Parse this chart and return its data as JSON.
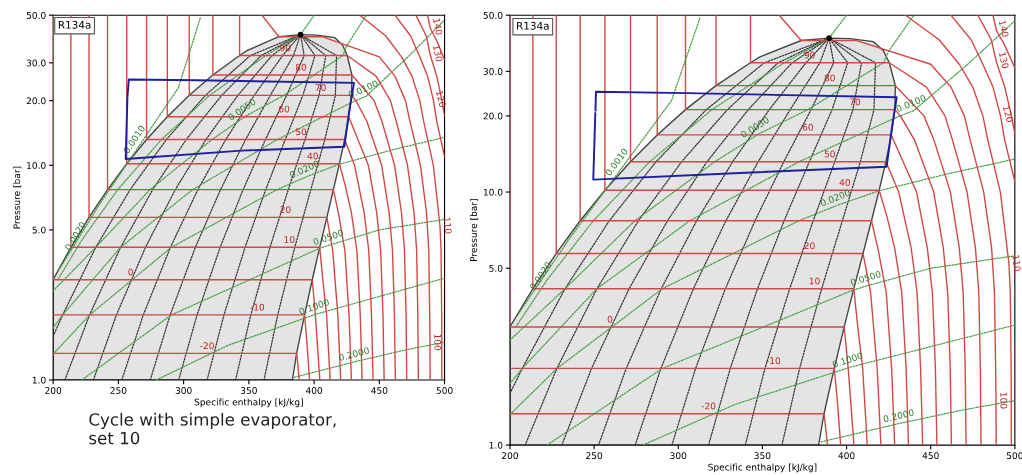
{
  "chart_data": [
    {
      "type": "line",
      "xlabel": "Specific enthalpy [kJ/kg]",
      "ylabel": "Pressure [bar]",
      "log": "y",
      "xlim": [
        200,
        500
      ],
      "ylim": [
        1,
        50
      ],
      "xticks": [
        200,
        250,
        300,
        350,
        400,
        450,
        500
      ],
      "yticks": [
        {
          "value": 1,
          "label": "1.0"
        },
        {
          "value": 5,
          "label": "5.0"
        },
        {
          "value": 10,
          "label": "10.0"
        },
        {
          "value": 20,
          "label": "20.0"
        },
        {
          "value": 30,
          "label": "30.0"
        },
        {
          "value": 50,
          "label": "50.0"
        }
      ],
      "series": [
        {
          "type": "area",
          "color": "#e4e4e4",
          "x": [
            200,
            200,
            213.6,
            227.5,
            241.7,
            256.4,
            271.6,
            287.5,
            304.3,
            322.4,
            342.9,
            348.5,
            373,
            389.6,
            402,
            415.9,
            421.8,
            425.4,
            429,
            428.7,
            426.6,
            423.4,
            419.4,
            414.8,
            409.8,
            404.3,
            398.6,
            392.7,
            386.6,
            383.4
          ],
          "values": [
            1.0,
            2.93,
            4.15,
            5.72,
            7.7,
            10.17,
            13.18,
            16.82,
            21.17,
            26.33,
            32.44,
            34.2,
            39.7,
            40.59,
            40.4,
            39.3,
            36.3,
            32.44,
            26.33,
            21.17,
            16.82,
            13.18,
            10.17,
            7.7,
            5.72,
            4.15,
            2.93,
            2.01,
            1.33,
            1.0
          ]
        },
        {
          "color": "#333333",
          "line_style": "dotted",
          "x": [
            200,
            207.3,
            232.7,
            259.0,
            286.8,
            316.7,
            351.2,
            389.6
          ],
          "values": [
            1.6,
            2.01,
            4.15,
            7.7,
            13.18,
            21.17,
            32.44,
            40.59
          ]
        },
        {
          "color": "#333333",
          "line_style": "dotted",
          "x": [
            209.0,
            227.9,
            251.7,
            276.3,
            302.0,
            329.2,
            359.4,
            389.6
          ],
          "values": [
            1.0,
            2.01,
            4.15,
            7.7,
            13.18,
            21.17,
            32.44,
            40.59
          ]
        },
        {
          "color": "#333333",
          "line_style": "dotted",
          "x": [
            230.8,
            248.5,
            270.8,
            293.6,
            317.1,
            341.6,
            367.7,
            389.6
          ],
          "values": [
            1.0,
            2.01,
            4.15,
            7.7,
            13.18,
            21.17,
            32.44,
            40.59
          ]
        },
        {
          "color": "#333333",
          "line_style": "dotted",
          "x": [
            252.6,
            269.1,
            289.9,
            310.9,
            332.3,
            354.1,
            375.9,
            389.6
          ],
          "values": [
            1.0,
            2.01,
            4.15,
            7.7,
            13.18,
            21.17,
            32.44,
            40.59
          ]
        },
        {
          "color": "#333333",
          "line_style": "dotted",
          "x": [
            274.4,
            289.7,
            309.0,
            328.3,
            347.5,
            366.5,
            384.2,
            389.6
          ],
          "values": [
            1.0,
            2.01,
            4.15,
            7.7,
            13.18,
            21.17,
            32.44,
            40.59
          ]
        },
        {
          "color": "#333333",
          "line_style": "dotted",
          "x": [
            296.2,
            310.3,
            328.0,
            345.6,
            362.7,
            378.9,
            392.4,
            389.6
          ],
          "values": [
            1.0,
            2.01,
            4.15,
            7.7,
            13.18,
            21.17,
            32.44,
            40.59
          ]
        },
        {
          "color": "#333333",
          "line_style": "dotted",
          "x": [
            318.0,
            330.9,
            347.1,
            362.9,
            377.9,
            391.4,
            400.7,
            389.6
          ],
          "values": [
            1.0,
            2.01,
            4.15,
            7.7,
            13.18,
            21.17,
            32.44,
            40.59
          ]
        },
        {
          "color": "#333333",
          "line_style": "dotted",
          "x": [
            339.8,
            351.5,
            366.2,
            380.2,
            393.0,
            403.8,
            408.9,
            389.6
          ],
          "values": [
            1.0,
            2.01,
            4.15,
            7.7,
            13.18,
            21.17,
            32.44,
            40.59
          ]
        },
        {
          "color": "#333333",
          "line_style": "dotted",
          "x": [
            361.6,
            372.1,
            385.2,
            397.5,
            408.2,
            416.3,
            417.2,
            389.6
          ],
          "values": [
            1.0,
            2.01,
            4.15,
            7.7,
            13.18,
            21.17,
            32.44,
            40.59
          ]
        },
        {
          "color": "#4a9e4a",
          "line_style": "dotted",
          "x": [
            205,
            235,
            267,
            296,
            313
          ],
          "values": [
            3.3,
            6.5,
            12.6,
            23,
            49
          ]
        },
        {
          "color": "#4a9e4a",
          "line_style": "dotted",
          "x": [
            203.5,
            222,
            249.5,
            283,
            320,
            363,
            389.6,
            400
          ],
          "values": [
            2.93,
            4.49,
            7.7,
            13.18,
            21.17,
            32.44,
            40.59,
            50
          ]
        },
        {
          "color": "#4a9e4a",
          "line_style": "dotted",
          "x": [
            200,
            232.7,
            274.2,
            321.7,
            348,
            376.9,
            422,
            425,
            440
          ],
          "values": [
            2.6,
            4.15,
            7.7,
            13.18,
            17.0,
            21.17,
            32.44,
            36,
            50
          ]
        },
        {
          "color": "#4a9e4a",
          "line_style": "dotted",
          "x": [
            200,
            207.3,
            251.7,
            306.8,
            371.8,
            428,
            440,
            472,
            500
          ],
          "values": [
            1.75,
            2.01,
            4.15,
            7.7,
            13.18,
            19.5,
            21,
            32,
            47.5
          ]
        },
        {
          "color": "#4a9e4a",
          "line_style": "dotted",
          "x": [
            200,
            228,
            290.6,
            371.6,
            395,
            419,
            460,
            500
          ],
          "values": [
            1.32,
            2.01,
            4.15,
            7.7,
            8.89,
            10.1,
            11.8,
            13.5
          ]
        },
        {
          "color": "#4a9e4a",
          "line_style": "dotted",
          "x": [
            222,
            290.7,
            404,
            412.7,
            450,
            500
          ],
          "values": [
            1.0,
            2.01,
            4.1,
            4.27,
            5.0,
            5.6
          ]
        },
        {
          "color": "#4a9e4a",
          "line_style": "dotted",
          "x": [
            279,
            334,
            402,
            450,
            500
          ],
          "values": [
            1.0,
            1.45,
            2.03,
            2.45,
            2.98
          ]
        },
        {
          "color": "#4a9e4a",
          "line_style": "dotted",
          "x": [
            385,
            432,
            470,
            500
          ],
          "values": [
            1.03,
            1.22,
            1.38,
            1.5
          ]
        },
        {
          "color": "#d04848",
          "x": [
            200,
            386.6,
            388.7
          ],
          "values": [
            1.33,
            1.33,
            1.0
          ]
        },
        {
          "color": "#d04848",
          "x": [
            200,
            392.7,
            394.5,
            396.5
          ],
          "values": [
            2.01,
            2.01,
            1.5,
            1.0
          ]
        },
        {
          "color": "#d04848",
          "x": [
            200,
            200,
            398.6,
            401,
            404.4
          ],
          "values": [
            50,
            2.93,
            2.93,
            2.0,
            1.0
          ]
        },
        {
          "color": "#d04848",
          "x": [
            213.6,
            213.6,
            404.3,
            406.5,
            409.6,
            412.3
          ],
          "values": [
            50,
            4.15,
            4.15,
            3.0,
            2.0,
            1.0
          ]
        },
        {
          "color": "#d04848",
          "x": [
            227.5,
            227.5,
            409.8,
            414.3,
            418.2,
            420.4
          ],
          "values": [
            50,
            5.72,
            5.72,
            4.0,
            2.0,
            1.0
          ]
        },
        {
          "color": "#d04848",
          "x": [
            241.7,
            241.7,
            414.8,
            418.6,
            423.6,
            426.8,
            428.6
          ],
          "values": [
            50,
            7.7,
            7.7,
            6.0,
            4.0,
            2.0,
            1.0
          ]
        },
        {
          "color": "#d04848",
          "x": [
            256.4,
            256.4,
            419.4,
            424,
            428.6,
            432.8,
            435.4,
            436.8
          ],
          "values": [
            50,
            10.17,
            10.17,
            8.0,
            6.0,
            4.0,
            2.0,
            1.0
          ]
        },
        {
          "color": "#d04848",
          "x": [
            271.6,
            271.6,
            423.4,
            431,
            438.4,
            441.9,
            444,
            445.2
          ],
          "values": [
            50,
            13.18,
            13.18,
            10,
            6.0,
            4.0,
            2.0,
            1.0
          ]
        },
        {
          "color": "#d04848",
          "x": [
            287.5,
            287.5,
            426.6,
            428,
            441.6,
            448,
            451,
            452.8,
            453.7
          ],
          "values": [
            50,
            16.82,
            16.82,
            16,
            10,
            6,
            4,
            2,
            1
          ]
        },
        {
          "color": "#d04848",
          "x": [
            304.3,
            304.3,
            428.7,
            432,
            440.5,
            451.8,
            457.5,
            460.1,
            461.6,
            462.3
          ],
          "values": [
            50,
            21.17,
            21.17,
            20,
            16,
            10,
            6,
            4,
            2,
            1
          ]
        },
        {
          "color": "#d04848",
          "x": [
            322.4,
            322.4,
            429,
            446,
            452,
            461.7,
            467,
            469.3,
            470.5,
            471
          ],
          "values": [
            50,
            26.33,
            26.33,
            20,
            16,
            10,
            6,
            4,
            2,
            1
          ]
        },
        {
          "color": "#d04848",
          "x": [
            342.9,
            342.9,
            425.4,
            447.5,
            458.5,
            463,
            471.6,
            476.6,
            478.6,
            479.5,
            479.9
          ],
          "values": [
            50,
            32.44,
            32.44,
            26,
            20,
            16,
            10,
            6,
            4,
            2,
            1
          ]
        },
        {
          "color": "#d04848",
          "x": [
            360,
            373,
            406,
            450,
            462,
            470,
            473.5,
            481.5,
            486.2,
            487.9,
            488.6,
            488.8,
            488.9
          ],
          "values": [
            50,
            39.7,
            39.7,
            32,
            26,
            20,
            16,
            10,
            6,
            4,
            2,
            1.5,
            1
          ]
        },
        {
          "color": "#d04848",
          "x": [
            435,
            455,
            467,
            475,
            481,
            484,
            491.4,
            496.5,
            497.3,
            497.8,
            497.9
          ],
          "values": [
            50,
            40,
            32,
            26,
            20,
            16,
            10,
            5.2,
            4,
            2,
            1
          ]
        },
        {
          "color": "#d04848",
          "x": [
            462,
            474,
            481,
            487,
            491.5,
            494,
            500
          ],
          "values": [
            50,
            40,
            32,
            26,
            20,
            16,
            11
          ]
        },
        {
          "color": "#d04848",
          "x": [
            478,
            486,
            489,
            494,
            498,
            500
          ],
          "values": [
            50,
            40,
            32.7,
            26,
            20,
            17
          ]
        },
        {
          "color": "#d04848",
          "x": [
            487,
            489,
            494,
            500
          ],
          "values": [
            50,
            43.6,
            38,
            31
          ]
        },
        {
          "color": "#1f1f9e",
          "x": [
            257,
            258,
            310,
            430.6,
            427,
            423.2,
            344.3,
            255.6,
            256.9
          ],
          "values": [
            21,
            25.1,
            24.9,
            24.2,
            18,
            12.2,
            11.7,
            10.7,
            20.5
          ]
        },
        {
          "type": "scatter",
          "color": "#000000",
          "marker": "circle",
          "x": [
            389.6
          ],
          "values": [
            40.59
          ]
        }
      ],
      "annotations": [
        "R134a",
        "Cycle with simple evaporator,\nset 10",
        {
          "text": "-20",
          "x": 318,
          "y": 1.33
        },
        {
          "text": "-10",
          "x": 356.5,
          "y": 2.01
        },
        {
          "text": "0",
          "x": 259.4,
          "y": 2.93
        },
        {
          "text": "10",
          "x": 381,
          "y": 4.15
        },
        {
          "text": "20",
          "x": 378,
          "y": 5.72
        },
        {
          "text": "40",
          "x": 399,
          "y": 10.17
        },
        {
          "text": "50",
          "x": 390,
          "y": 13.18
        },
        {
          "text": "60",
          "x": 377,
          "y": 16.82
        },
        {
          "text": "70",
          "x": 405,
          "y": 21.17
        },
        {
          "text": "80",
          "x": 390,
          "y": 26.33
        },
        {
          "text": "90",
          "x": 378,
          "y": 32.44
        },
        {
          "text": "100",
          "x": 488.8,
          "y": 1.5
        },
        {
          "text": "110",
          "x": 496.5,
          "y": 5.2
        },
        {
          "text": "120",
          "x": 491.5,
          "y": 20
        },
        {
          "text": "130",
          "x": 489,
          "y": 32.7
        },
        {
          "text": "140",
          "x": 489,
          "y": 43.6
        },
        {
          "text": "0.0010",
          "x": 267,
          "y": 12.6
        },
        {
          "text": "0.0020",
          "x": 222,
          "y": 4.49
        },
        {
          "text": "0.0050",
          "x": 348,
          "y": 17.0
        },
        {
          "text": "0.0100",
          "x": 440,
          "y": 21
        },
        {
          "text": "0.0200",
          "x": 395,
          "y": 8.89
        },
        {
          "text": "0.0500",
          "x": 412.7,
          "y": 4.27
        },
        {
          "text": "0.1000",
          "x": 402,
          "y": 2.03
        },
        {
          "text": "0.2000",
          "x": 432,
          "y": 1.22
        }
      ]
    },
    {
      "type": "line",
      "xlabel": "Specific enthalpy [kJ/kg]",
      "ylabel": "Pressure [bar]",
      "log": "y",
      "xlim": [
        200,
        500
      ],
      "ylim": [
        1,
        50
      ],
      "xticks": [
        200,
        250,
        300,
        350,
        400,
        450,
        500
      ],
      "yticks": [
        {
          "value": 1,
          "label": "1.0"
        },
        {
          "value": 5,
          "label": "5.0"
        },
        {
          "value": 10,
          "label": "10.0"
        },
        {
          "value": 20,
          "label": "20.0"
        },
        {
          "value": 30,
          "label": "30.0"
        },
        {
          "value": 50,
          "label": "50.0"
        }
      ],
      "series": [
        {
          "type": "area",
          "color": "#e4e4e4",
          "x": [
            200,
            200,
            213.6,
            227.5,
            241.7,
            256.4,
            271.6,
            287.5,
            304.3,
            322.4,
            342.9,
            348.5,
            373,
            389.6,
            402,
            415.9,
            421.8,
            425.4,
            429,
            428.7,
            426.6,
            423.4,
            419.4,
            414.8,
            409.8,
            404.3,
            398.6,
            392.7,
            386.6,
            383.4
          ],
          "values": [
            1.0,
            2.93,
            4.15,
            5.72,
            7.7,
            10.17,
            13.18,
            16.82,
            21.17,
            26.33,
            32.44,
            34.2,
            39.7,
            40.59,
            40.4,
            39.3,
            36.3,
            32.44,
            26.33,
            21.17,
            16.82,
            13.18,
            10.17,
            7.7,
            5.72,
            4.15,
            2.93,
            2.01,
            1.33,
            1.0
          ]
        },
        {
          "color": "#333333",
          "line_style": "dotted",
          "x": [
            200,
            207.3,
            232.7,
            259.0,
            286.8,
            316.7,
            351.2,
            389.6
          ],
          "values": [
            1.6,
            2.01,
            4.15,
            7.7,
            13.18,
            21.17,
            32.44,
            40.59
          ]
        },
        {
          "color": "#333333",
          "line_style": "dotted",
          "x": [
            209.0,
            227.9,
            251.7,
            276.3,
            302.0,
            329.2,
            359.4,
            389.6
          ],
          "values": [
            1.0,
            2.01,
            4.15,
            7.7,
            13.18,
            21.17,
            32.44,
            40.59
          ]
        },
        {
          "color": "#333333",
          "line_style": "dotted",
          "x": [
            230.8,
            248.5,
            270.8,
            293.6,
            317.1,
            341.6,
            367.7,
            389.6
          ],
          "values": [
            1.0,
            2.01,
            4.15,
            7.7,
            13.18,
            21.17,
            32.44,
            40.59
          ]
        },
        {
          "color": "#333333",
          "line_style": "dotted",
          "x": [
            252.6,
            269.1,
            289.9,
            310.9,
            332.3,
            354.1,
            375.9,
            389.6
          ],
          "values": [
            1.0,
            2.01,
            4.15,
            7.7,
            13.18,
            21.17,
            32.44,
            40.59
          ]
        },
        {
          "color": "#333333",
          "line_style": "dotted",
          "x": [
            274.4,
            289.7,
            309.0,
            328.3,
            347.5,
            366.5,
            384.2,
            389.6
          ],
          "values": [
            1.0,
            2.01,
            4.15,
            7.7,
            13.18,
            21.17,
            32.44,
            40.59
          ]
        },
        {
          "color": "#333333",
          "line_style": "dotted",
          "x": [
            296.2,
            310.3,
            328.0,
            345.6,
            362.7,
            378.9,
            392.4,
            389.6
          ],
          "values": [
            1.0,
            2.01,
            4.15,
            7.7,
            13.18,
            21.17,
            32.44,
            40.59
          ]
        },
        {
          "color": "#333333",
          "line_style": "dotted",
          "x": [
            318.0,
            330.9,
            347.1,
            362.9,
            377.9,
            391.4,
            400.7,
            389.6
          ],
          "values": [
            1.0,
            2.01,
            4.15,
            7.7,
            13.18,
            21.17,
            32.44,
            40.59
          ]
        },
        {
          "color": "#333333",
          "line_style": "dotted",
          "x": [
            339.8,
            351.5,
            366.2,
            380.2,
            393.0,
            403.8,
            408.9,
            389.6
          ],
          "values": [
            1.0,
            2.01,
            4.15,
            7.7,
            13.18,
            21.17,
            32.44,
            40.59
          ]
        },
        {
          "color": "#333333",
          "line_style": "dotted",
          "x": [
            361.6,
            372.1,
            385.2,
            397.5,
            408.2,
            416.3,
            417.2,
            389.6
          ],
          "values": [
            1.0,
            2.01,
            4.15,
            7.7,
            13.18,
            21.17,
            32.44,
            40.59
          ]
        },
        {
          "color": "#4a9e4a",
          "line_style": "dotted",
          "x": [
            205,
            235,
            267,
            296,
            313
          ],
          "values": [
            3.3,
            6.5,
            12.6,
            23,
            49
          ]
        },
        {
          "color": "#4a9e4a",
          "line_style": "dotted",
          "x": [
            203.5,
            222,
            249.5,
            283,
            320,
            363,
            389.6,
            400
          ],
          "values": [
            2.93,
            4.49,
            7.7,
            13.18,
            21.17,
            32.44,
            40.59,
            50
          ]
        },
        {
          "color": "#4a9e4a",
          "line_style": "dotted",
          "x": [
            200,
            232.7,
            274.2,
            321.7,
            348,
            376.9,
            422,
            425,
            440
          ],
          "values": [
            2.6,
            4.15,
            7.7,
            13.18,
            17.0,
            21.17,
            32.44,
            36,
            50
          ]
        },
        {
          "color": "#4a9e4a",
          "line_style": "dotted",
          "x": [
            200,
            207.3,
            251.7,
            306.8,
            371.8,
            428,
            440,
            472,
            500
          ],
          "values": [
            1.75,
            2.01,
            4.15,
            7.7,
            13.18,
            19.5,
            21,
            32,
            47.5
          ]
        },
        {
          "color": "#4a9e4a",
          "line_style": "dotted",
          "x": [
            200,
            228,
            290.6,
            371.6,
            395,
            419,
            460,
            500
          ],
          "values": [
            1.32,
            2.01,
            4.15,
            7.7,
            8.89,
            10.1,
            11.8,
            13.5
          ]
        },
        {
          "color": "#4a9e4a",
          "line_style": "dotted",
          "x": [
            222,
            290.7,
            404,
            412.7,
            450,
            500
          ],
          "values": [
            1.0,
            2.01,
            4.1,
            4.27,
            5.0,
            5.6
          ]
        },
        {
          "color": "#4a9e4a",
          "line_style": "dotted",
          "x": [
            279,
            334,
            402,
            450,
            500
          ],
          "values": [
            1.0,
            1.45,
            2.03,
            2.45,
            2.98
          ]
        },
        {
          "color": "#4a9e4a",
          "line_style": "dotted",
          "x": [
            385,
            432,
            470,
            500
          ],
          "values": [
            1.03,
            1.22,
            1.38,
            1.5
          ]
        },
        {
          "color": "#d04848",
          "x": [
            200,
            386.6,
            388.7
          ],
          "values": [
            1.33,
            1.33,
            1.0
          ]
        },
        {
          "color": "#d04848",
          "x": [
            200,
            392.7,
            394.5,
            396.5
          ],
          "values": [
            2.01,
            2.01,
            1.5,
            1.0
          ]
        },
        {
          "color": "#d04848",
          "x": [
            200,
            200,
            398.6,
            401,
            404.4
          ],
          "values": [
            50,
            2.93,
            2.93,
            2.0,
            1.0
          ]
        },
        {
          "color": "#d04848",
          "x": [
            213.6,
            213.6,
            404.3,
            406.5,
            409.6,
            412.3
          ],
          "values": [
            50,
            4.15,
            4.15,
            3.0,
            2.0,
            1.0
          ]
        },
        {
          "color": "#d04848",
          "x": [
            227.5,
            227.5,
            409.8,
            414.3,
            418.2,
            420.4
          ],
          "values": [
            50,
            5.72,
            5.72,
            4.0,
            2.0,
            1.0
          ]
        },
        {
          "color": "#d04848",
          "x": [
            241.7,
            241.7,
            414.8,
            418.6,
            423.6,
            426.8,
            428.6
          ],
          "values": [
            50,
            7.7,
            7.7,
            6.0,
            4.0,
            2.0,
            1.0
          ]
        },
        {
          "color": "#d04848",
          "x": [
            256.4,
            256.4,
            419.4,
            424,
            428.6,
            432.8,
            435.4,
            436.8
          ],
          "values": [
            50,
            10.17,
            10.17,
            8.0,
            6.0,
            4.0,
            2.0,
            1.0
          ]
        },
        {
          "color": "#d04848",
          "x": [
            271.6,
            271.6,
            423.4,
            431,
            438.4,
            441.9,
            444,
            445.2
          ],
          "values": [
            50,
            13.18,
            13.18,
            10,
            6.0,
            4.0,
            2.0,
            1.0
          ]
        },
        {
          "color": "#d04848",
          "x": [
            287.5,
            287.5,
            426.6,
            428,
            441.6,
            448,
            451,
            452.8,
            453.7
          ],
          "values": [
            50,
            16.82,
            16.82,
            16,
            10,
            6,
            4,
            2,
            1
          ]
        },
        {
          "color": "#d04848",
          "x": [
            304.3,
            304.3,
            428.7,
            432,
            440.5,
            451.8,
            457.5,
            460.1,
            461.6,
            462.3
          ],
          "values": [
            50,
            21.17,
            21.17,
            20,
            16,
            10,
            6,
            4,
            2,
            1
          ]
        },
        {
          "color": "#d04848",
          "x": [
            322.4,
            322.4,
            429,
            446,
            452,
            461.7,
            467,
            469.3,
            470.5,
            471
          ],
          "values": [
            50,
            26.33,
            26.33,
            20,
            16,
            10,
            6,
            4,
            2,
            1
          ]
        },
        {
          "color": "#d04848",
          "x": [
            342.9,
            342.9,
            425.4,
            447.5,
            458.5,
            463,
            471.6,
            476.6,
            478.6,
            479.5,
            479.9
          ],
          "values": [
            50,
            32.44,
            32.44,
            26,
            20,
            16,
            10,
            6,
            4,
            2,
            1
          ]
        },
        {
          "color": "#d04848",
          "x": [
            360,
            373,
            406,
            450,
            462,
            470,
            473.5,
            481.5,
            486.2,
            487.9,
            488.6,
            488.8,
            488.9
          ],
          "values": [
            50,
            39.7,
            39.7,
            32,
            26,
            20,
            16,
            10,
            6,
            4,
            2,
            1.5,
            1
          ]
        },
        {
          "color": "#d04848",
          "x": [
            435,
            455,
            467,
            475,
            481,
            484,
            491.4,
            496.5,
            497.3,
            497.8,
            497.9
          ],
          "values": [
            50,
            40,
            32,
            26,
            20,
            16,
            10,
            5.2,
            4,
            2,
            1
          ]
        },
        {
          "color": "#d04848",
          "x": [
            462,
            474,
            481,
            487,
            491.5,
            494,
            500
          ],
          "values": [
            50,
            40,
            32,
            26,
            20,
            16,
            11
          ]
        },
        {
          "color": "#d04848",
          "x": [
            478,
            486,
            489,
            494,
            498,
            500
          ],
          "values": [
            50,
            40,
            32.7,
            26,
            20,
            17
          ]
        },
        {
          "color": "#d04848",
          "x": [
            487,
            489,
            494,
            500
          ],
          "values": [
            50,
            43.6,
            38,
            31
          ]
        },
        {
          "color": "#1f1f9e",
          "x": [
            250.8,
            251.1,
            305,
            429.8,
            427,
            423.8,
            336.7,
            249.5,
            250.7
          ],
          "values": [
            21,
            24.9,
            24.6,
            23.7,
            18,
            12.6,
            11.9,
            11.2,
            20.5
          ]
        },
        {
          "type": "scatter",
          "color": "#000000",
          "marker": "circle",
          "x": [
            389.6
          ],
          "values": [
            40.59
          ]
        }
      ],
      "annotations": [
        "R134a",
        {
          "text": "-20",
          "x": 318,
          "y": 1.33
        },
        {
          "text": "-10",
          "x": 356.5,
          "y": 2.01
        },
        {
          "text": "0",
          "x": 259.4,
          "y": 2.93
        },
        {
          "text": "10",
          "x": 381,
          "y": 4.15
        },
        {
          "text": "20",
          "x": 378,
          "y": 5.72
        },
        {
          "text": "40",
          "x": 399,
          "y": 10.17
        },
        {
          "text": "50",
          "x": 390,
          "y": 13.18
        },
        {
          "text": "60",
          "x": 377,
          "y": 16.82
        },
        {
          "text": "70",
          "x": 405,
          "y": 21.17
        },
        {
          "text": "80",
          "x": 390,
          "y": 26.33
        },
        {
          "text": "90",
          "x": 378,
          "y": 32.44
        },
        {
          "text": "100",
          "x": 488.8,
          "y": 1.5
        },
        {
          "text": "110",
          "x": 496.5,
          "y": 5.2
        },
        {
          "text": "120",
          "x": 491.5,
          "y": 20
        },
        {
          "text": "130",
          "x": 489,
          "y": 32.7
        },
        {
          "text": "140",
          "x": 489,
          "y": 43.6
        },
        {
          "text": "0.0010",
          "x": 267,
          "y": 12.6
        },
        {
          "text": "0.0020",
          "x": 222,
          "y": 4.49
        },
        {
          "text": "0.0050",
          "x": 348,
          "y": 17.0
        },
        {
          "text": "0.0100",
          "x": 440,
          "y": 21
        },
        {
          "text": "0.0200",
          "x": 395,
          "y": 8.89
        },
        {
          "text": "0.0500",
          "x": 412.7,
          "y": 4.27
        },
        {
          "text": "0.1000",
          "x": 402,
          "y": 2.03
        },
        {
          "text": "0.2000",
          "x": 432,
          "y": 1.22
        }
      ]
    }
  ]
}
